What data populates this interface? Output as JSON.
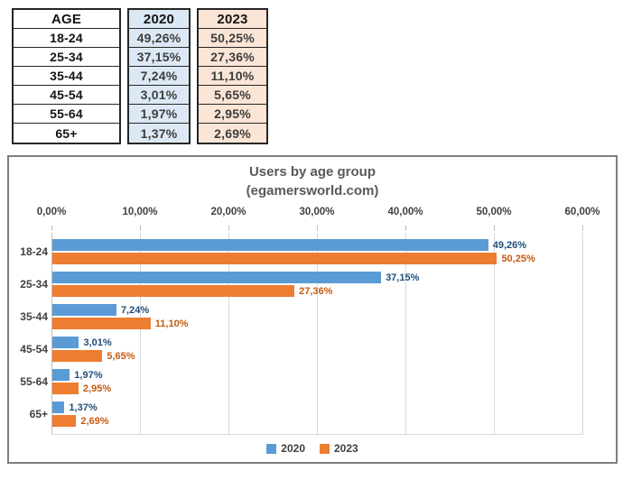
{
  "table": {
    "headers": [
      "AGE",
      "2020",
      "2023"
    ],
    "rows": [
      {
        "age": "18-24",
        "y2020": "49,26%",
        "y2023": "50,25%"
      },
      {
        "age": "25-34",
        "y2020": "37,15%",
        "y2023": "27,36%"
      },
      {
        "age": "35-44",
        "y2020": "7,24%",
        "y2023": "11,10%"
      },
      {
        "age": "45-54",
        "y2020": "3,01%",
        "y2023": "5,65%"
      },
      {
        "age": "55-64",
        "y2020": "1,97%",
        "y2023": "2,95%"
      },
      {
        "age": "65+",
        "y2020": "1,37%",
        "y2023": "2,69%"
      }
    ]
  },
  "chart_data": {
    "type": "bar",
    "orientation": "horizontal",
    "title_line1": "Users by age group",
    "title_line2": "(egamersworld.com)",
    "categories": [
      "18-24",
      "25-34",
      "35-44",
      "45-54",
      "55-64",
      "65+"
    ],
    "series": [
      {
        "name": "2020",
        "color": "#5B9BD5",
        "label_color": "#1F4E79",
        "values": [
          49.26,
          37.15,
          7.24,
          3.01,
          1.97,
          1.37
        ],
        "labels": [
          "49,26%",
          "37,15%",
          "7,24%",
          "3,01%",
          "1,97%",
          "1,37%"
        ]
      },
      {
        "name": "2023",
        "color": "#ED7D31",
        "label_color": "#C55A11",
        "values": [
          50.25,
          27.36,
          11.1,
          5.65,
          2.95,
          2.69
        ],
        "labels": [
          "50,25%",
          "27,36%",
          "11,10%",
          "5,65%",
          "2,95%",
          "2,69%"
        ]
      }
    ],
    "x_ticks": [
      "0,00%",
      "10,00%",
      "20,00%",
      "30,00%",
      "40,00%",
      "50,00%",
      "60,00%"
    ],
    "xlim": [
      0,
      60
    ],
    "grid": true,
    "legend_position": "bottom"
  },
  "colors": {
    "bar_2020": "#5B9BD5",
    "bar_2023": "#ED7D31",
    "value_label_2020": "#1F4E79",
    "value_label_2023": "#C55A11",
    "table_2020_bg": "#DCE9F5",
    "table_2023_bg": "#FBE5D6",
    "title_text": "#595959"
  }
}
